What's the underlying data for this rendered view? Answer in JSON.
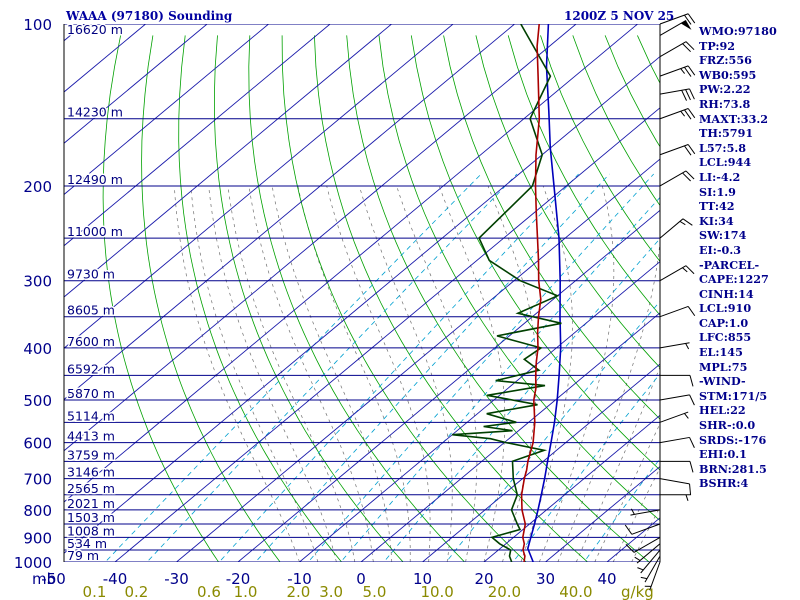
{
  "header": {
    "title": "WAAA (97180) Sounding",
    "datetime": "1200Z  5 NOV 25"
  },
  "colors": {
    "isobar": "#00008b",
    "dry_adiabat": "#00a000",
    "isotherm": "#1a1aaa",
    "moist_adiabat": "#707070",
    "mixing_ratio": "#00a0d0",
    "temperature": "#aa0000",
    "dewpoint": "#004000",
    "parcel": "#0000bb",
    "pw_axis": "#8a8a00",
    "text": "#00008b",
    "wind": "#000000"
  },
  "indices": [
    "WMO:97180",
    "TP:92",
    "FRZ:556",
    "WB0:595",
    "PW:2.22",
    "RH:73.8",
    "MAXT:33.2",
    "TH:5791",
    "L57:5.8",
    "LCL:944",
    "LI:-4.2",
    "SI:1.9",
    "TT:42",
    "KI:34",
    "SW:174",
    "EI:-0.3",
    "-PARCEL-",
    "CAPE:1227",
    "CINH:14",
    "LCL:910",
    "CAP:1.0",
    "LFC:855",
    "EL:145",
    "MPL:75",
    "-WIND-",
    "STM:171/5",
    "HEL:22",
    "SHR-:0.0",
    "SRDS:-176",
    "EHI:0.1",
    "BRN:281.5",
    "BSHR:4"
  ],
  "chart_data": {
    "type": "skew-t",
    "title": "WAAA (97180) Sounding",
    "pressure_unit": "mb",
    "pressure_ticks": [
      100,
      200,
      300,
      400,
      500,
      600,
      700,
      800,
      900,
      1000
    ],
    "pressure_range": [
      100,
      1000
    ],
    "temperature_ticks": [
      -50,
      -40,
      -30,
      -20,
      -10,
      0,
      10,
      20,
      30,
      40
    ],
    "temperature_tick_labels": [
      "-50",
      "-40",
      "-30",
      "-20",
      "-10",
      "0",
      "10",
      "20",
      "30",
      "40"
    ],
    "temperature_unit": "C",
    "mixing_ratio_ticks": [
      0.1,
      0.2,
      0.6,
      1.0,
      2.0,
      3.0,
      5.0,
      10.0,
      20.0,
      40.0
    ],
    "mixing_ratio_labels": [
      "0.1",
      "0.2",
      "0.6",
      "1.0",
      "2.0",
      "3.0",
      "5.0",
      "10.0",
      "20.0",
      "40.0"
    ],
    "mixing_ratio_unit": "g/kg",
    "height_levels": [
      {
        "p": 100,
        "label": "16620 m"
      },
      {
        "p": 150,
        "label": "14230 m"
      },
      {
        "p": 200,
        "label": "12490 m"
      },
      {
        "p": 250,
        "label": "11000 m"
      },
      {
        "p": 300,
        "label": "9730 m"
      },
      {
        "p": 350,
        "label": "8605 m"
      },
      {
        "p": 400,
        "label": "7600 m"
      },
      {
        "p": 450,
        "label": "6592 m"
      },
      {
        "p": 500,
        "label": "5870 m"
      },
      {
        "p": 550,
        "label": "5114 m"
      },
      {
        "p": 600,
        "label": "4413 m"
      },
      {
        "p": 650,
        "label": "3759 m"
      },
      {
        "p": 700,
        "label": "3146 m"
      },
      {
        "p": 750,
        "label": "2565 m"
      },
      {
        "p": 800,
        "label": "2021 m"
      },
      {
        "p": 850,
        "label": "1503 m"
      },
      {
        "p": 900,
        "label": "1008 m"
      },
      {
        "p": 950,
        "label": "534 m"
      },
      {
        "p": 1000,
        "label": "79 m"
      }
    ],
    "temperature_profile": [
      {
        "p": 1000,
        "t": 26.5
      },
      {
        "p": 975,
        "t": 25.5
      },
      {
        "p": 950,
        "t": 24.0
      },
      {
        "p": 925,
        "t": 23.0
      },
      {
        "p": 900,
        "t": 21.5
      },
      {
        "p": 850,
        "t": 19.3
      },
      {
        "p": 800,
        "t": 16.0
      },
      {
        "p": 750,
        "t": 13.0
      },
      {
        "p": 700,
        "t": 10.3
      },
      {
        "p": 675,
        "t": 9.0
      },
      {
        "p": 650,
        "t": 7.5
      },
      {
        "p": 600,
        "t": 4.7
      },
      {
        "p": 550,
        "t": 1.0
      },
      {
        "p": 500,
        "t": -3.5
      },
      {
        "p": 475,
        "t": -5.5
      },
      {
        "p": 450,
        "t": -8.0
      },
      {
        "p": 425,
        "t": -10.5
      },
      {
        "p": 400,
        "t": -13.0
      },
      {
        "p": 375,
        "t": -16.0
      },
      {
        "p": 350,
        "t": -19.0
      },
      {
        "p": 325,
        "t": -22.0
      },
      {
        "p": 300,
        "t": -26.0
      },
      {
        "p": 275,
        "t": -30.0
      },
      {
        "p": 250,
        "t": -34.5
      },
      {
        "p": 225,
        "t": -39.5
      },
      {
        "p": 200,
        "t": -45.0
      },
      {
        "p": 175,
        "t": -51.0
      },
      {
        "p": 150,
        "t": -57.5
      },
      {
        "p": 125,
        "t": -66.0
      },
      {
        "p": 110,
        "t": -72.0
      },
      {
        "p": 100,
        "t": -76.0
      }
    ],
    "dewpoint_profile": [
      {
        "p": 1000,
        "t": 24.5
      },
      {
        "p": 975,
        "t": 23.0
      },
      {
        "p": 950,
        "t": 22.0
      },
      {
        "p": 925,
        "t": 19.0
      },
      {
        "p": 900,
        "t": 16.5
      },
      {
        "p": 870,
        "t": 19.5
      },
      {
        "p": 850,
        "t": 18.0
      },
      {
        "p": 800,
        "t": 14.3
      },
      {
        "p": 750,
        "t": 12.3
      },
      {
        "p": 700,
        "t": 8.5
      },
      {
        "p": 650,
        "t": 5.0
      },
      {
        "p": 620,
        "t": 8.0
      },
      {
        "p": 600,
        "t": 0.3
      },
      {
        "p": 590,
        "t": -3.0
      },
      {
        "p": 580,
        "t": -10.0
      },
      {
        "p": 570,
        "t": -1.0
      },
      {
        "p": 560,
        "t": -6.5
      },
      {
        "p": 550,
        "t": -2.0
      },
      {
        "p": 530,
        "t": -8.5
      },
      {
        "p": 510,
        "t": -2.0
      },
      {
        "p": 490,
        "t": -12.0
      },
      {
        "p": 470,
        "t": -4.5
      },
      {
        "p": 460,
        "t": -13.5
      },
      {
        "p": 440,
        "t": -8.5
      },
      {
        "p": 420,
        "t": -13.0
      },
      {
        "p": 400,
        "t": -12.5
      },
      {
        "p": 380,
        "t": -22.0
      },
      {
        "p": 360,
        "t": -14.0
      },
      {
        "p": 345,
        "t": -23.0
      },
      {
        "p": 320,
        "t": -20.0
      },
      {
        "p": 300,
        "t": -29.0
      },
      {
        "p": 275,
        "t": -38.0
      },
      {
        "p": 250,
        "t": -44.0
      },
      {
        "p": 200,
        "t": -45.5
      },
      {
        "p": 175,
        "t": -50.0
      },
      {
        "p": 150,
        "t": -59.0
      },
      {
        "p": 125,
        "t": -64.0
      },
      {
        "p": 100,
        "t": -79.0
      }
    ],
    "parcel_profile": [
      {
        "p": 1000,
        "t": 28.0
      },
      {
        "p": 944,
        "t": 24.5
      },
      {
        "p": 900,
        "t": 22.8
      },
      {
        "p": 850,
        "t": 20.8
      },
      {
        "p": 800,
        "t": 18.6
      },
      {
        "p": 750,
        "t": 16.2
      },
      {
        "p": 700,
        "t": 13.6
      },
      {
        "p": 650,
        "t": 10.7
      },
      {
        "p": 600,
        "t": 7.6
      },
      {
        "p": 550,
        "t": 4.2
      },
      {
        "p": 500,
        "t": 0.3
      },
      {
        "p": 450,
        "t": -4.2
      },
      {
        "p": 400,
        "t": -9.3
      },
      {
        "p": 350,
        "t": -15.5
      },
      {
        "p": 300,
        "t": -22.5
      },
      {
        "p": 250,
        "t": -31.0
      },
      {
        "p": 200,
        "t": -42.0
      },
      {
        "p": 170,
        "t": -50.0
      },
      {
        "p": 145,
        "t": -57.5
      },
      {
        "p": 120,
        "t": -66.5
      },
      {
        "p": 100,
        "t": -74.5
      }
    ],
    "wind_barbs": [
      {
        "p": 1000,
        "dir": 200,
        "spd": 5
      },
      {
        "p": 975,
        "dir": 210,
        "spd": 5
      },
      {
        "p": 950,
        "dir": 220,
        "spd": 5
      },
      {
        "p": 925,
        "dir": 230,
        "spd": 5
      },
      {
        "p": 900,
        "dir": 240,
        "spd": 10
      },
      {
        "p": 850,
        "dir": 250,
        "spd": 10
      },
      {
        "p": 800,
        "dir": 260,
        "spd": 5
      },
      {
        "p": 750,
        "dir": 90,
        "spd": 5
      },
      {
        "p": 700,
        "dir": 100,
        "spd": 10
      },
      {
        "p": 650,
        "dir": 90,
        "spd": 10
      },
      {
        "p": 600,
        "dir": 80,
        "spd": 10
      },
      {
        "p": 550,
        "dir": 70,
        "spd": 5
      },
      {
        "p": 500,
        "dir": 80,
        "spd": 10
      },
      {
        "p": 450,
        "dir": 90,
        "spd": 10
      },
      {
        "p": 400,
        "dir": 80,
        "spd": 5
      },
      {
        "p": 350,
        "dir": 70,
        "spd": 10
      },
      {
        "p": 300,
        "dir": 60,
        "spd": 15
      },
      {
        "p": 250,
        "dir": 50,
        "spd": 15
      },
      {
        "p": 200,
        "dir": 60,
        "spd": 20
      },
      {
        "p": 175,
        "dir": 70,
        "spd": 20
      },
      {
        "p": 150,
        "dir": 70,
        "spd": 25
      },
      {
        "p": 135,
        "dir": 80,
        "spd": 30
      },
      {
        "p": 125,
        "dir": 70,
        "spd": 25
      },
      {
        "p": 115,
        "dir": 60,
        "spd": 20
      },
      {
        "p": 105,
        "dir": 60,
        "spd": 50
      },
      {
        "p": 100,
        "dir": 70,
        "spd": 20
      }
    ]
  }
}
